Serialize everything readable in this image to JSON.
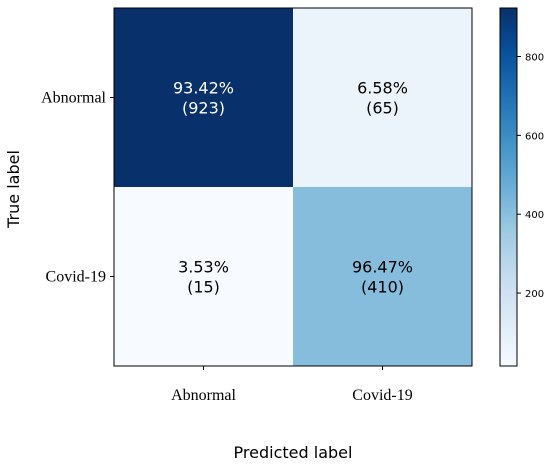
{
  "chart_data": {
    "type": "heatmap",
    "x_categories": [
      "Abnormal",
      "Covid-19"
    ],
    "y_categories": [
      "Abnormal",
      "Covid-19"
    ],
    "cells": [
      [
        {
          "percent": "93.42%",
          "count": "(923)",
          "value": 923
        },
        {
          "percent": "6.58%",
          "count": "(65)",
          "value": 65
        }
      ],
      [
        {
          "percent": "3.53%",
          "count": "(15)",
          "value": 15
        },
        {
          "percent": "96.47%",
          "count": "(410)",
          "value": 410
        }
      ]
    ],
    "xlabel": "Predicted label",
    "ylabel": "True label",
    "colorbar": {
      "ticks": [
        200,
        400,
        600,
        800
      ],
      "vmin": 15,
      "vmax": 923,
      "colormap": "Blues"
    }
  }
}
